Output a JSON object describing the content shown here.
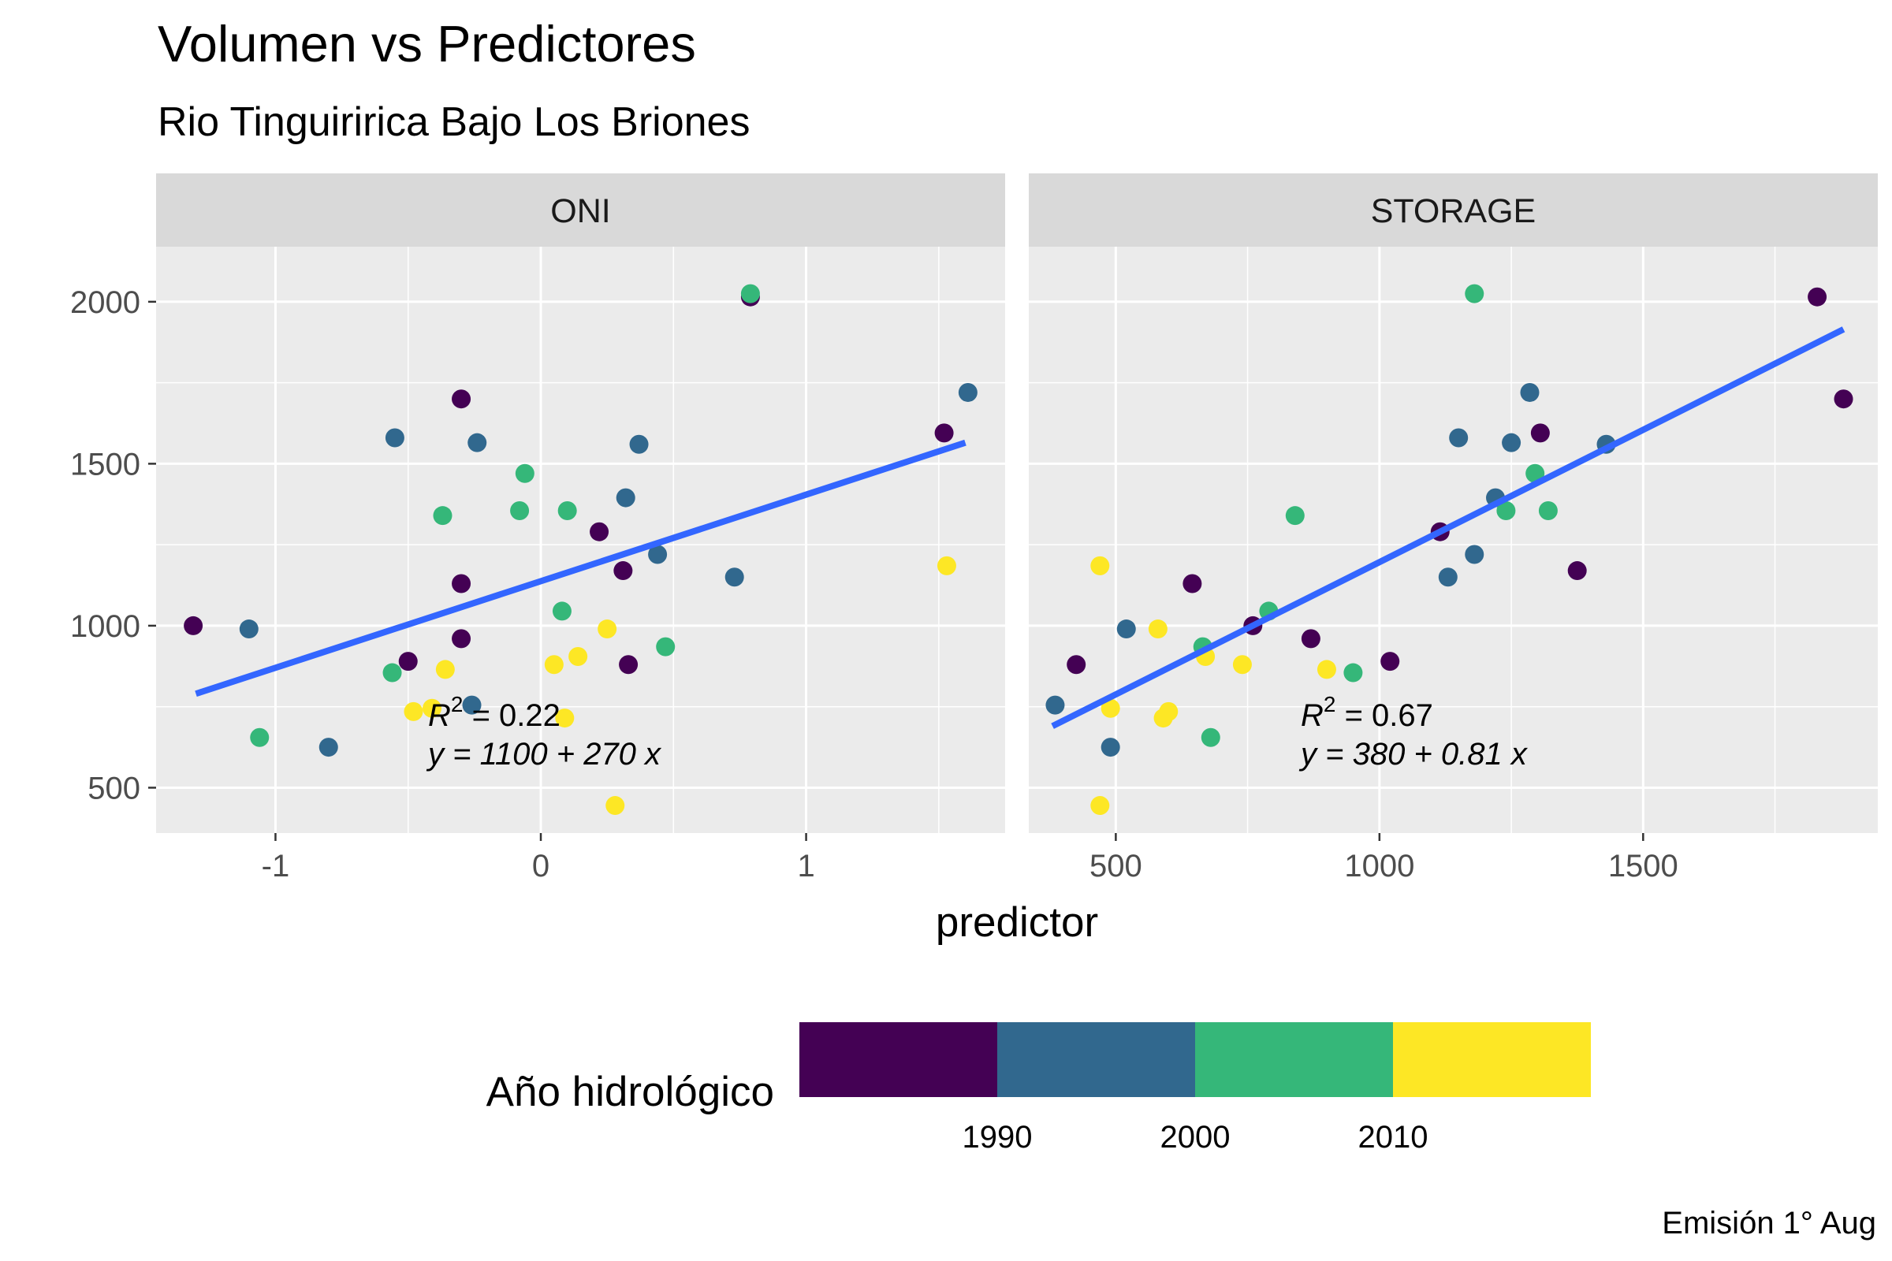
{
  "chart_data": {
    "type": "scatter",
    "title": "Volumen vs Predictores",
    "subtitle": "Rio Tinguiririca Bajo Los Briones",
    "xlabel": "predictor",
    "ylabel": "",
    "caption": "Emisión 1° Aug",
    "grid": true,
    "legend": {
      "title": "Año hidrológico",
      "position": "bottom",
      "bins": [
        {
          "label": "",
          "color": "#440154"
        },
        {
          "label": "1990",
          "color": "#31688E"
        },
        {
          "label": "2000",
          "color": "#35B779"
        },
        {
          "label": "2010",
          "color": "#FDE725"
        }
      ],
      "tick_labels": [
        "1990",
        "2000",
        "2010"
      ]
    },
    "y_ticks": [
      500,
      1000,
      1500,
      2000
    ],
    "ylim": [
      360,
      2170
    ],
    "panels": [
      {
        "label": "ONI",
        "xlim": [
          -1.45,
          1.75
        ],
        "x_ticks": [
          -1,
          0,
          1
        ],
        "x_tick_labels": [
          "-1",
          "0",
          "1"
        ],
        "fit": {
          "x": [
            -1.3,
            1.6
          ],
          "y": [
            790,
            1565
          ]
        },
        "r2_text": "0.22",
        "eq_text": "y = 1100 + 270 x",
        "points": [
          {
            "x": -1.31,
            "y": 1000,
            "g": 0
          },
          {
            "x": -0.5,
            "y": 890,
            "g": 0
          },
          {
            "x": -0.3,
            "y": 1700,
            "g": 0
          },
          {
            "x": -0.3,
            "y": 1130,
            "g": 0
          },
          {
            "x": -0.3,
            "y": 960,
            "g": 0
          },
          {
            "x": 0.22,
            "y": 1290,
            "g": 0
          },
          {
            "x": 0.31,
            "y": 1170,
            "g": 0
          },
          {
            "x": 0.33,
            "y": 880,
            "g": 0
          },
          {
            "x": 0.79,
            "y": 2015,
            "g": 0
          },
          {
            "x": 1.52,
            "y": 1595,
            "g": 0
          },
          {
            "x": -1.1,
            "y": 990,
            "g": 1
          },
          {
            "x": -0.8,
            "y": 625,
            "g": 1
          },
          {
            "x": -0.55,
            "y": 1580,
            "g": 1
          },
          {
            "x": -0.24,
            "y": 1565,
            "g": 1
          },
          {
            "x": -0.26,
            "y": 755,
            "g": 1
          },
          {
            "x": 0.32,
            "y": 1395,
            "g": 1
          },
          {
            "x": 0.37,
            "y": 1560,
            "g": 1
          },
          {
            "x": 0.44,
            "y": 1220,
            "g": 1
          },
          {
            "x": 0.73,
            "y": 1150,
            "g": 1
          },
          {
            "x": 1.61,
            "y": 1720,
            "g": 1
          },
          {
            "x": -1.06,
            "y": 655,
            "g": 2
          },
          {
            "x": -0.56,
            "y": 855,
            "g": 2
          },
          {
            "x": -0.37,
            "y": 1340,
            "g": 2
          },
          {
            "x": -0.08,
            "y": 1355,
            "g": 2
          },
          {
            "x": -0.06,
            "y": 1470,
            "g": 2
          },
          {
            "x": 0.08,
            "y": 1045,
            "g": 2
          },
          {
            "x": 0.1,
            "y": 1355,
            "g": 2
          },
          {
            "x": 0.47,
            "y": 935,
            "g": 2
          },
          {
            "x": 0.79,
            "y": 2025,
            "g": 2
          },
          {
            "x": -0.48,
            "y": 735,
            "g": 3
          },
          {
            "x": -0.41,
            "y": 745,
            "g": 3
          },
          {
            "x": -0.36,
            "y": 865,
            "g": 3
          },
          {
            "x": 0.05,
            "y": 880,
            "g": 3
          },
          {
            "x": 0.09,
            "y": 715,
            "g": 3
          },
          {
            "x": 0.14,
            "y": 905,
            "g": 3
          },
          {
            "x": 0.25,
            "y": 990,
            "g": 3
          },
          {
            "x": 0.28,
            "y": 445,
            "g": 3
          },
          {
            "x": 1.53,
            "y": 1185,
            "g": 3
          }
        ]
      },
      {
        "label": "STORAGE",
        "xlim": [
          335,
          1945
        ],
        "x_ticks": [
          500,
          1000,
          1500
        ],
        "x_tick_labels": [
          "500",
          "1000",
          "1500"
        ],
        "fit": {
          "x": [
            380,
            1880
          ],
          "y": [
            690,
            1915
          ]
        },
        "r2_text": "0.67",
        "eq_text": "y = 380 + 0.81 x",
        "points": [
          {
            "x": 425,
            "y": 880,
            "g": 0
          },
          {
            "x": 645,
            "y": 1130,
            "g": 0
          },
          {
            "x": 760,
            "y": 1000,
            "g": 0
          },
          {
            "x": 870,
            "y": 960,
            "g": 0
          },
          {
            "x": 1020,
            "y": 890,
            "g": 0
          },
          {
            "x": 1115,
            "y": 1290,
            "g": 0
          },
          {
            "x": 1305,
            "y": 1595,
            "g": 0
          },
          {
            "x": 1375,
            "y": 1170,
            "g": 0
          },
          {
            "x": 1830,
            "y": 2015,
            "g": 0
          },
          {
            "x": 1880,
            "y": 1700,
            "g": 0
          },
          {
            "x": 385,
            "y": 755,
            "g": 1
          },
          {
            "x": 490,
            "y": 625,
            "g": 1
          },
          {
            "x": 520,
            "y": 990,
            "g": 1
          },
          {
            "x": 1130,
            "y": 1150,
            "g": 1
          },
          {
            "x": 1150,
            "y": 1580,
            "g": 1
          },
          {
            "x": 1180,
            "y": 1220,
            "g": 1
          },
          {
            "x": 1220,
            "y": 1395,
            "g": 1
          },
          {
            "x": 1250,
            "y": 1565,
            "g": 1
          },
          {
            "x": 1285,
            "y": 1720,
            "g": 1
          },
          {
            "x": 1430,
            "y": 1560,
            "g": 1
          },
          {
            "x": 665,
            "y": 935,
            "g": 2
          },
          {
            "x": 680,
            "y": 655,
            "g": 2
          },
          {
            "x": 790,
            "y": 1045,
            "g": 2
          },
          {
            "x": 840,
            "y": 1340,
            "g": 2
          },
          {
            "x": 950,
            "y": 855,
            "g": 2
          },
          {
            "x": 1180,
            "y": 2025,
            "g": 2
          },
          {
            "x": 1240,
            "y": 1355,
            "g": 2
          },
          {
            "x": 1295,
            "y": 1470,
            "g": 2
          },
          {
            "x": 1320,
            "y": 1355,
            "g": 2
          },
          {
            "x": 470,
            "y": 1185,
            "g": 3
          },
          {
            "x": 470,
            "y": 445,
            "g": 3
          },
          {
            "x": 490,
            "y": 745,
            "g": 3
          },
          {
            "x": 580,
            "y": 990,
            "g": 3
          },
          {
            "x": 590,
            "y": 715,
            "g": 3
          },
          {
            "x": 600,
            "y": 735,
            "g": 3
          },
          {
            "x": 670,
            "y": 905,
            "g": 3
          },
          {
            "x": 740,
            "y": 880,
            "g": 3
          },
          {
            "x": 900,
            "y": 865,
            "g": 3
          }
        ]
      }
    ]
  }
}
